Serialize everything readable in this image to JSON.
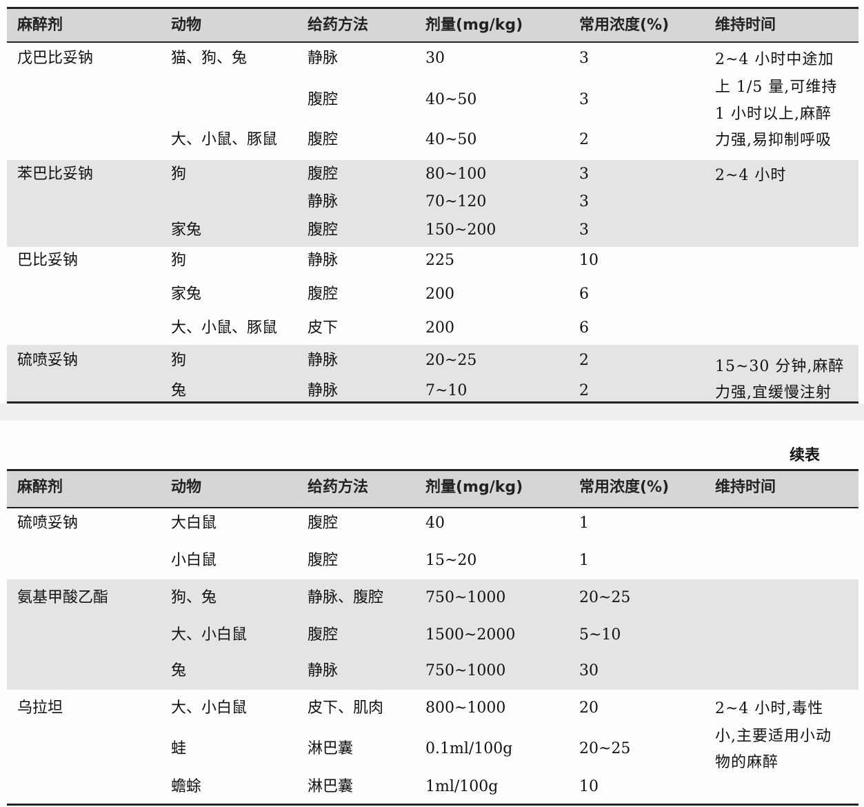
{
  "continued_label": "续表",
  "tables": [
    {
      "header": [
        "麻醉剂",
        "动物",
        "给药方法",
        "剂量(mg/kg)",
        "常用浓度(%)",
        "维持时间"
      ],
      "groups": [
        {
          "agent": "戊巴比妥钠",
          "rows": [
            {
              "animal": "猫、狗、兔",
              "route": "静脉",
              "dose": "30",
              "conc": "3"
            },
            {
              "animal": "",
              "route": "腹腔",
              "dose": "40~50",
              "conc": "3"
            },
            {
              "animal": "大、小鼠、豚鼠",
              "route": "腹腔",
              "dose": "40~50",
              "conc": "2"
            }
          ],
          "duration": [
            "2~4 小时中途加",
            "上 1/5 量,可维持",
            "1 小时以上,麻醉",
            "力强,易抑制呼吸"
          ]
        },
        {
          "agent": "苯巴比妥钠",
          "rows": [
            {
              "animal": "狗",
              "route": "腹腔",
              "dose": "80~100",
              "conc": "3"
            },
            {
              "animal": "",
              "route": "静脉",
              "dose": "70~120",
              "conc": "3"
            },
            {
              "animal": "家兔",
              "route": "腹腔",
              "dose": "150~200",
              "conc": "3"
            }
          ],
          "duration": [
            "2~4 小时"
          ]
        },
        {
          "agent": "巴比妥钠",
          "rows": [
            {
              "animal": "狗",
              "route": "静脉",
              "dose": "225",
              "conc": "10"
            },
            {
              "animal": "家兔",
              "route": "腹腔",
              "dose": "200",
              "conc": "6"
            },
            {
              "animal": "大、小鼠、豚鼠",
              "route": "皮下",
              "dose": "200",
              "conc": "6"
            }
          ],
          "duration": []
        },
        {
          "agent": "硫喷妥钠",
          "rows": [
            {
              "animal": "狗",
              "route": "静脉",
              "dose": "20~25",
              "conc": "2"
            },
            {
              "animal": "兔",
              "route": "静脉",
              "dose": "7~10",
              "conc": "2"
            }
          ],
          "duration": [
            "15~30 分钟,麻醉",
            "力强,宜缓慢注射"
          ]
        }
      ]
    },
    {
      "header": [
        "麻醉剂",
        "动物",
        "给药方法",
        "剂量(mg/kg)",
        "常用浓度(%)",
        "维持时间"
      ],
      "groups": [
        {
          "agent": "硫喷妥钠",
          "rows": [
            {
              "animal": "大白鼠",
              "route": "腹腔",
              "dose": "40",
              "conc": "1"
            },
            {
              "animal": "小白鼠",
              "route": "腹腔",
              "dose": "15~20",
              "conc": "1"
            }
          ],
          "duration": []
        },
        {
          "agent": "氨基甲酸乙酯",
          "rows": [
            {
              "animal": "狗、兔",
              "route": "静脉、腹腔",
              "dose": "750~1000",
              "conc": "20~25"
            },
            {
              "animal": "大、小白鼠",
              "route": "腹腔",
              "dose": "1500~2000",
              "conc": "5~10"
            },
            {
              "animal": "兔",
              "route": "静脉",
              "dose": "750~1000",
              "conc": "30"
            }
          ],
          "duration": []
        },
        {
          "agent": "乌拉坦",
          "rows": [
            {
              "animal": "大、小白鼠",
              "route": "皮下、肌肉",
              "dose": "800~1000",
              "conc": "20"
            },
            {
              "animal": "蛙",
              "route": "淋巴囊",
              "dose": "0.1ml/100g",
              "conc": "20~25"
            },
            {
              "animal": "蟾蜍",
              "route": "淋巴囊",
              "dose": "1ml/100g",
              "conc": "10"
            }
          ],
          "duration": [
            "2~4 小时,毒性",
            "小,主要适用小动",
            "物的麻醉"
          ]
        }
      ]
    }
  ]
}
